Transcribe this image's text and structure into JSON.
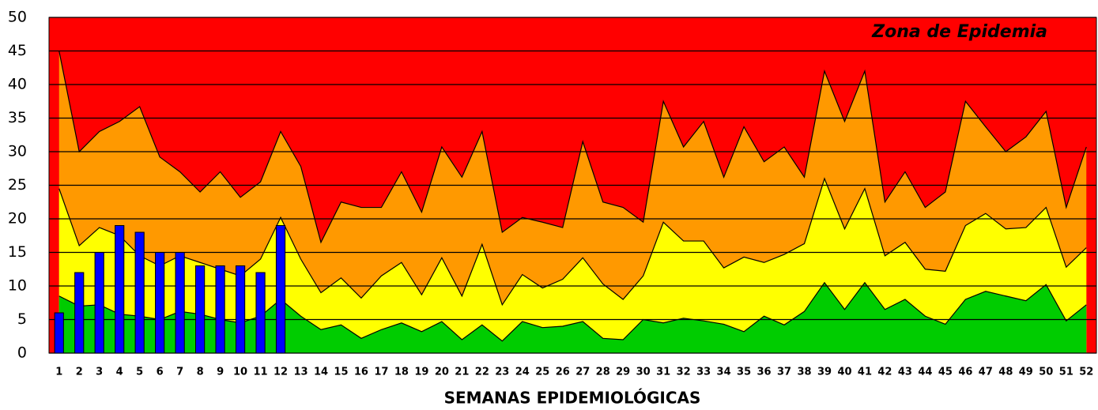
{
  "chart_data": {
    "type": "area",
    "annotation": "Zona de Epidemia",
    "x_label": "SEMANAS EPIDEMIOLÓGICAS",
    "plot_color": "#ff0000",
    "categories": [
      "1",
      "2",
      "3",
      "4",
      "5",
      "6",
      "7",
      "8",
      "9",
      "10",
      "11",
      "12",
      "13",
      "14",
      "15",
      "16",
      "17",
      "18",
      "19",
      "20",
      "21",
      "22",
      "23",
      "24",
      "25",
      "26",
      "27",
      "28",
      "29",
      "30",
      "31",
      "32",
      "33",
      "34",
      "35",
      "36",
      "37",
      "38",
      "39",
      "40",
      "41",
      "42",
      "43",
      "44",
      "45",
      "46",
      "47",
      "48",
      "49",
      "50",
      "51",
      "52"
    ],
    "ylim": [
      0,
      50
    ],
    "yticks": [
      0,
      5,
      10,
      15,
      20,
      25,
      30,
      35,
      40,
      45,
      50
    ],
    "grid": true,
    "series": [
      {
        "color": "#00cc00",
        "values": [
          8.5,
          7,
          7.2,
          5.8,
          5.5,
          5,
          6.2,
          5.8,
          5,
          4.5,
          5.5,
          8,
          5.5,
          3.5,
          4.2,
          2.2,
          3.5,
          4.5,
          3.2,
          4.7,
          2,
          4.2,
          1.8,
          4.7,
          3.8,
          4,
          4.7,
          2.2,
          2,
          5,
          4.5,
          5.2,
          4.8,
          4.3,
          3.2,
          5.5,
          4.2,
          6.2,
          10.5,
          6.5,
          10.5,
          6.5,
          8,
          5.5,
          4.3,
          8,
          9.2,
          8.5,
          7.8,
          10.2,
          4.8,
          7.2
        ]
      },
      {
        "color": "#ffff00",
        "values": [
          24.5,
          16,
          18.7,
          17.5,
          14.5,
          13,
          14.5,
          13.5,
          12.5,
          11.5,
          14,
          20.2,
          14,
          9,
          11.2,
          8.2,
          11.5,
          13.5,
          8.7,
          14.2,
          8.5,
          16.2,
          7.2,
          11.7,
          9.7,
          11,
          14.2,
          10.3,
          8,
          11.5,
          19.5,
          16.7,
          16.7,
          12.7,
          14.3,
          13.5,
          14.7,
          16.3,
          26,
          18.5,
          24.5,
          14.5,
          16.5,
          12.5,
          12.2,
          19,
          20.8,
          18.5,
          18.7,
          21.7,
          12.8,
          15.7
        ]
      },
      {
        "color": "#ff9900",
        "values": [
          45,
          30,
          33,
          34.5,
          36.7,
          29.2,
          27,
          24,
          27,
          23.2,
          25.5,
          33,
          27.8,
          16.5,
          22.5,
          21.7,
          21.7,
          27,
          21,
          30.7,
          26.2,
          33,
          18,
          20.2,
          19.5,
          18.7,
          31.5,
          22.5,
          21.7,
          19.5,
          37.5,
          30.7,
          34.5,
          26.2,
          33.7,
          28.5,
          30.7,
          26.2,
          42,
          34.5,
          42,
          22.5,
          27,
          21.7,
          24,
          37.5,
          33.7,
          30,
          32.2,
          36,
          21.7,
          30.7
        ]
      },
      {
        "type": "bar",
        "color": "#0000ff",
        "values": [
          6,
          12,
          15,
          19,
          18,
          15,
          15,
          13,
          13,
          13,
          12,
          19,
          null,
          null,
          null,
          null,
          null,
          null,
          null,
          null,
          null,
          null,
          null,
          null,
          null,
          null,
          null,
          null,
          null,
          null,
          null,
          null,
          null,
          null,
          null,
          null,
          null,
          null,
          null,
          null,
          null,
          null,
          null,
          null,
          null,
          null,
          null,
          null,
          null,
          null,
          null,
          null
        ]
      }
    ]
  }
}
